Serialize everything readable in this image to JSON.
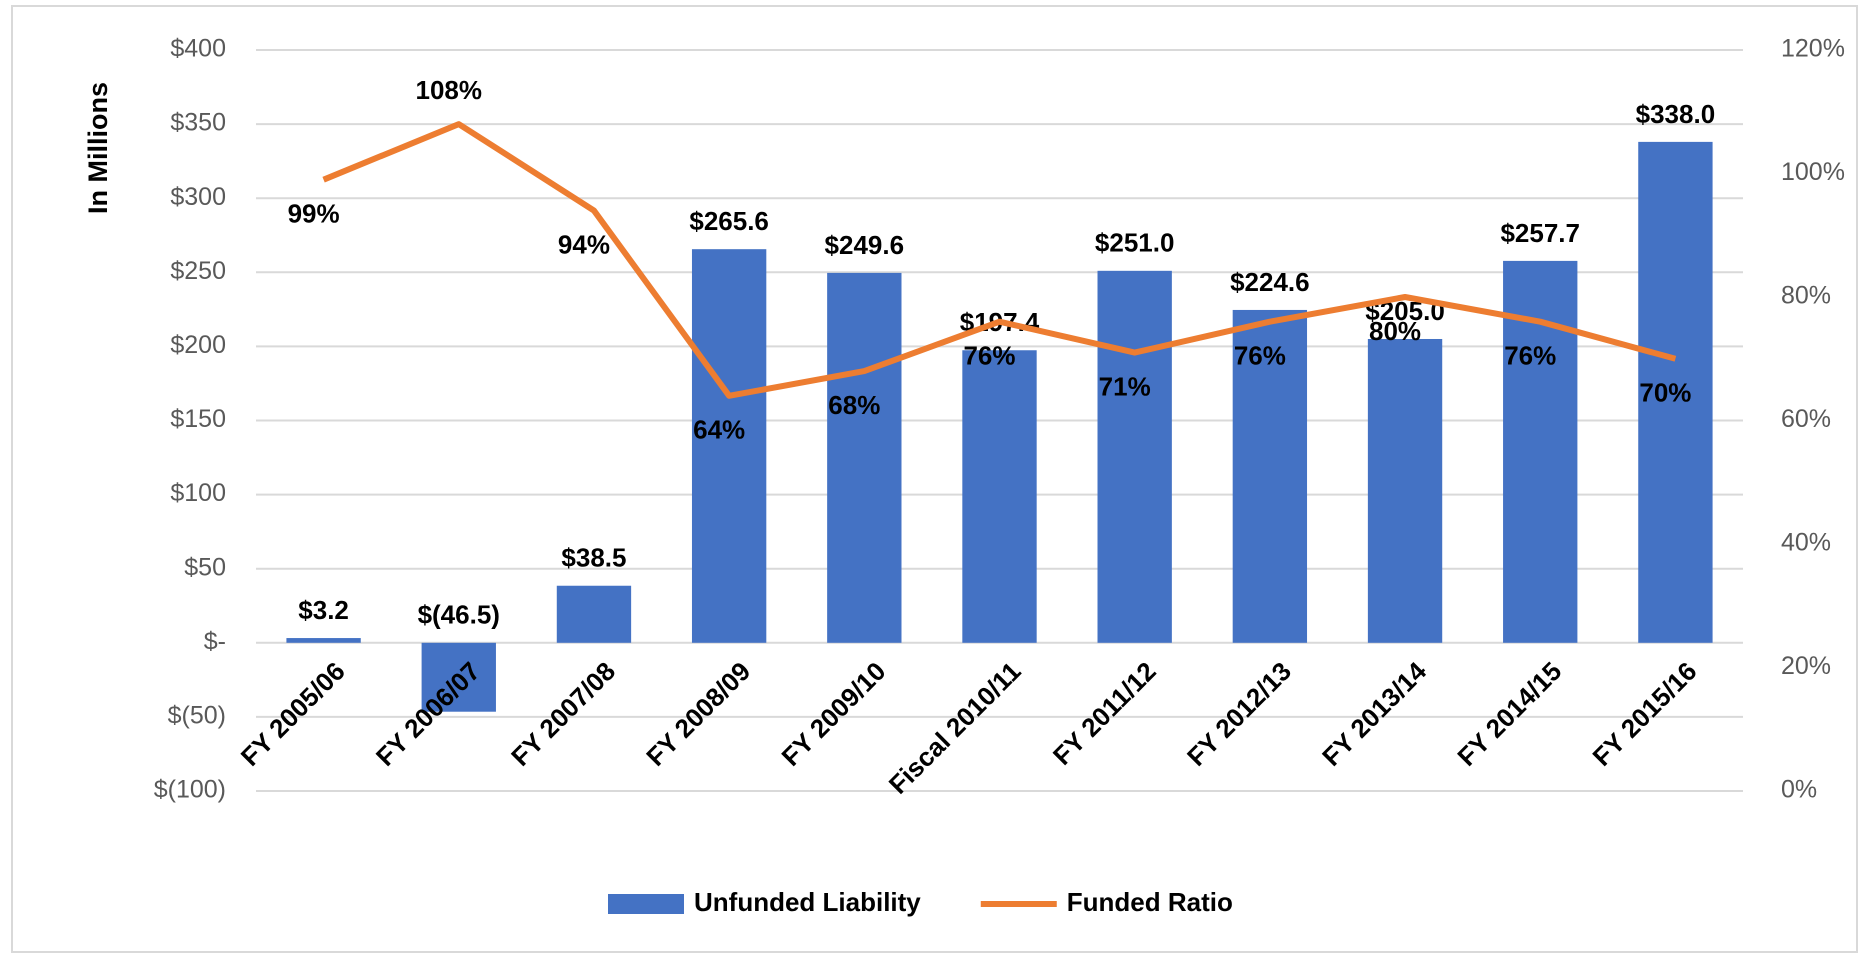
{
  "chart_data": {
    "type": "bar-line",
    "y_axis_label": "In Millions",
    "categories": [
      "FY 2005/06",
      "FY 2006/07",
      "FY 2007/08",
      "FY 2008/09",
      "FY 2009/10",
      "Fiscal 2010/11",
      "FY 2011/12",
      "FY 2012/13",
      "FY 2013/14",
      "FY 2014/15",
      "FY 2015/16"
    ],
    "series": [
      {
        "name": "Unfunded Liability",
        "type": "bar",
        "color": "#4472c4",
        "values": [
          3.2,
          -46.5,
          38.5,
          265.6,
          249.6,
          197.4,
          251.0,
          224.6,
          205.0,
          257.7,
          338.0
        ],
        "value_labels": [
          "$3.2",
          "$(46.5)",
          "$38.5",
          "$265.6",
          "$249.6",
          "$197.4",
          "$251.0",
          "$224.6",
          "$205.0",
          "$257.7",
          "$338.0"
        ]
      },
      {
        "name": "Funded Ratio",
        "type": "line",
        "axis": "y2",
        "color": "#ed7d31",
        "values": [
          99,
          108,
          94,
          64,
          68,
          76,
          71,
          76,
          80,
          76,
          70
        ],
        "value_labels": [
          "99%",
          "108%",
          "94%",
          "64%",
          "68%",
          "76%",
          "71%",
          "76%",
          "80%",
          "76%",
          "70%"
        ]
      }
    ],
    "ylim": [
      -100,
      400
    ],
    "yticks": [
      {
        "value": -100,
        "label": "$(100)"
      },
      {
        "value": -50,
        "label": "$(50)"
      },
      {
        "value": 0,
        "label": "$-"
      },
      {
        "value": 50,
        "label": "$50"
      },
      {
        "value": 100,
        "label": "$100"
      },
      {
        "value": 150,
        "label": "$150"
      },
      {
        "value": 200,
        "label": "$200"
      },
      {
        "value": 250,
        "label": "$250"
      },
      {
        "value": 300,
        "label": "$300"
      },
      {
        "value": 350,
        "label": "$350"
      },
      {
        "value": 400,
        "label": "$400"
      }
    ],
    "y2lim": [
      0,
      120
    ],
    "y2ticks": [
      {
        "value": 0,
        "label": "0%"
      },
      {
        "value": 20,
        "label": "20%"
      },
      {
        "value": 40,
        "label": "40%"
      },
      {
        "value": 60,
        "label": "60%"
      },
      {
        "value": 80,
        "label": "80%"
      },
      {
        "value": 100,
        "label": "100%"
      },
      {
        "value": 120,
        "label": "120%"
      }
    ],
    "grid": true,
    "legend": "bottom"
  }
}
